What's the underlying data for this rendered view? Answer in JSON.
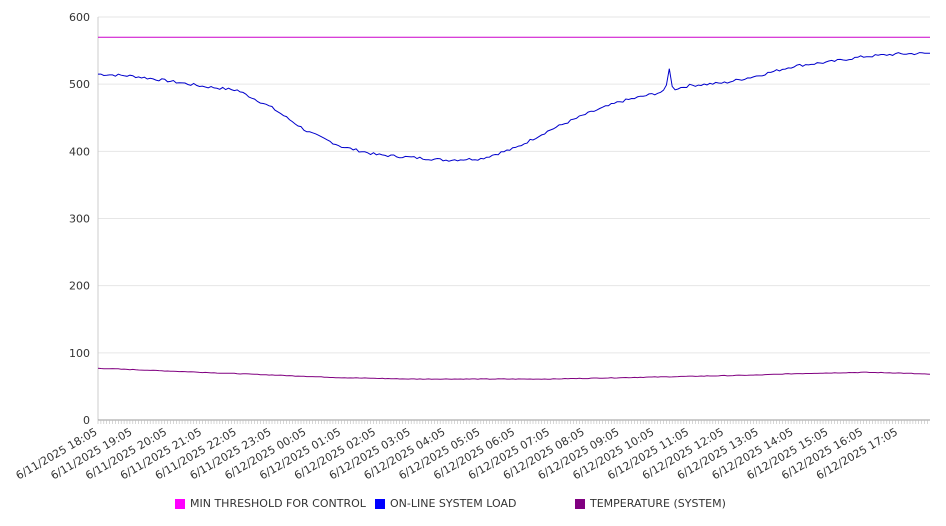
{
  "chart_data": {
    "type": "line",
    "title": "",
    "xlabel": "",
    "ylabel": "",
    "ylim": [
      0,
      600
    ],
    "yticks": [
      0,
      100,
      200,
      300,
      400,
      500,
      600
    ],
    "grid": true,
    "legend_position": "bottom",
    "x": [
      "6/11/2025 18:05",
      "6/11/2025 19:05",
      "6/11/2025 20:05",
      "6/11/2025 21:05",
      "6/11/2025 22:05",
      "6/11/2025 23:05",
      "6/12/2025 00:05",
      "6/12/2025 01:05",
      "6/12/2025 02:05",
      "6/12/2025 03:05",
      "6/12/2025 04:05",
      "6/12/2025 05:05",
      "6/12/2025 06:05",
      "6/12/2025 07:05",
      "6/12/2025 08:05",
      "6/12/2025 09:05",
      "6/12/2025 10:05",
      "6/12/2025 11:05",
      "6/12/2025 12:05",
      "6/12/2025 13:05",
      "6/12/2025 14:05",
      "6/12/2025 15:05",
      "6/12/2025 16:05",
      "6/12/2025 17:05"
    ],
    "series": [
      {
        "name": "MIN THRESHOLD FOR CONTROL",
        "color": "#cc00cc",
        "legend_color": "#ff00ff",
        "values": [
          570,
          570,
          570,
          570,
          570,
          570,
          570,
          570,
          570,
          570,
          570,
          570,
          570,
          570,
          570,
          570,
          570,
          570,
          570,
          570,
          570,
          570,
          570,
          570
        ]
      },
      {
        "name": "ON-LINE SYSTEM LOAD",
        "color": "#0000cc",
        "legend_color": "#0000ff",
        "values": [
          515,
          512,
          505,
          497,
          491,
          465,
          430,
          407,
          395,
          391,
          387,
          389,
          405,
          432,
          455,
          474,
          486,
          498,
          502,
          513,
          527,
          533,
          541,
          545
        ],
        "end_value": 546,
        "spike": {
          "x": "6/12/2025 10:05",
          "peak": 523
        }
      },
      {
        "name": "TEMPERATURE (SYSTEM)",
        "color": "#800080",
        "legend_color": "#800080",
        "values": [
          77,
          75,
          73,
          71,
          69,
          67,
          65,
          63,
          62,
          61,
          61,
          61,
          61,
          61,
          62,
          63,
          64,
          65,
          66,
          67,
          69,
          70,
          71,
          70
        ],
        "end_value": 68
      }
    ]
  }
}
